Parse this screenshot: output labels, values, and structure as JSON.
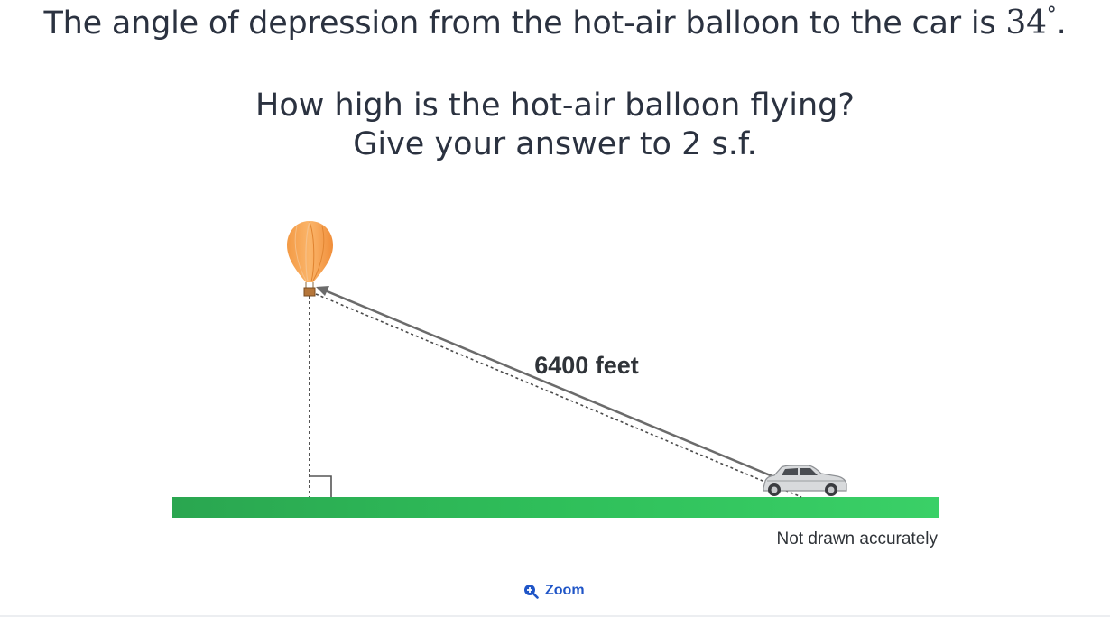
{
  "question": {
    "line1_text": "The angle of depression from the hot-air balloon to the car is ",
    "angle_value": "34",
    "angle_unit": "°",
    "line1_end": ".",
    "line2": "How high is the hot-air balloon flying?",
    "line3": "Give your answer to 2 s.f."
  },
  "diagram": {
    "hypotenuse_label": "6400 feet",
    "note": "Not drawn accurately",
    "colors": {
      "ground": "#2fbf5a",
      "balloon": "#f7a85a",
      "arrow": "#6b6b6b"
    }
  },
  "controls": {
    "zoom_label": "Zoom",
    "zoom_icon": "zoom-in-icon"
  }
}
